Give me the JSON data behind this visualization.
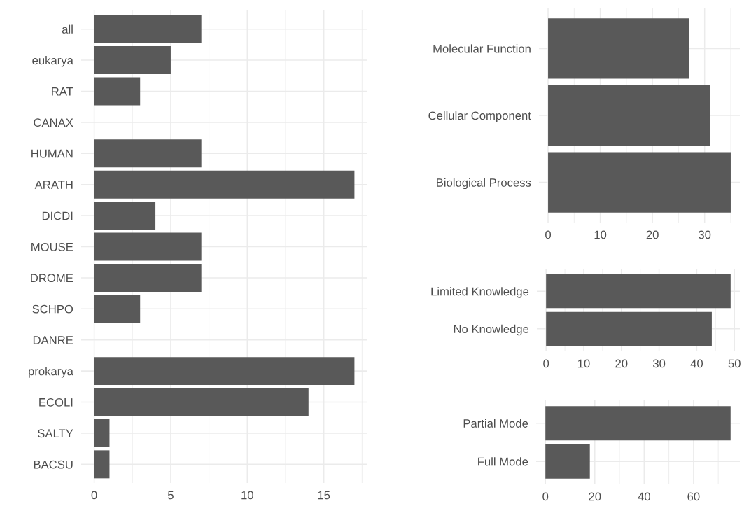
{
  "chart_data": [
    {
      "type": "bar",
      "orientation": "horizontal",
      "categories": [
        "all",
        "eukarya",
        "RAT",
        "CANAX",
        "HUMAN",
        "ARATH",
        "DICDI",
        "MOUSE",
        "DROME",
        "SCHPO",
        "DANRE",
        "prokarya",
        "ECOLI",
        "SALTY",
        "BACSU"
      ],
      "values": [
        7,
        5,
        3,
        0,
        7,
        17,
        4,
        7,
        7,
        3,
        0,
        17,
        14,
        1,
        1
      ],
      "color": "#595959",
      "xlim": [
        -0.85,
        17.85
      ],
      "xticks": [
        0,
        5,
        10,
        15
      ],
      "grid": true
    },
    {
      "type": "bar",
      "orientation": "horizontal",
      "categories": [
        "Molecular Function",
        "Cellular Component",
        "Biological Process"
      ],
      "values": [
        27,
        31,
        35
      ],
      "color": "#595959",
      "xlim": [
        -1.75,
        36.75
      ],
      "xticks": [
        0,
        10,
        20,
        30
      ],
      "grid": true
    },
    {
      "type": "bar",
      "orientation": "horizontal",
      "categories": [
        "Limited Knowledge",
        "No Knowledge"
      ],
      "values": [
        49,
        44
      ],
      "color": "#595959",
      "xlim": [
        -2.45,
        51.45
      ],
      "xticks": [
        0,
        10,
        20,
        30,
        40,
        50
      ],
      "grid": true
    },
    {
      "type": "bar",
      "orientation": "horizontal",
      "categories": [
        "Partial Mode",
        "Full Mode"
      ],
      "values": [
        75,
        18
      ],
      "color": "#595959",
      "xlim": [
        -3.75,
        78.75
      ],
      "xticks": [
        0,
        20,
        40,
        60
      ],
      "grid": true
    }
  ]
}
